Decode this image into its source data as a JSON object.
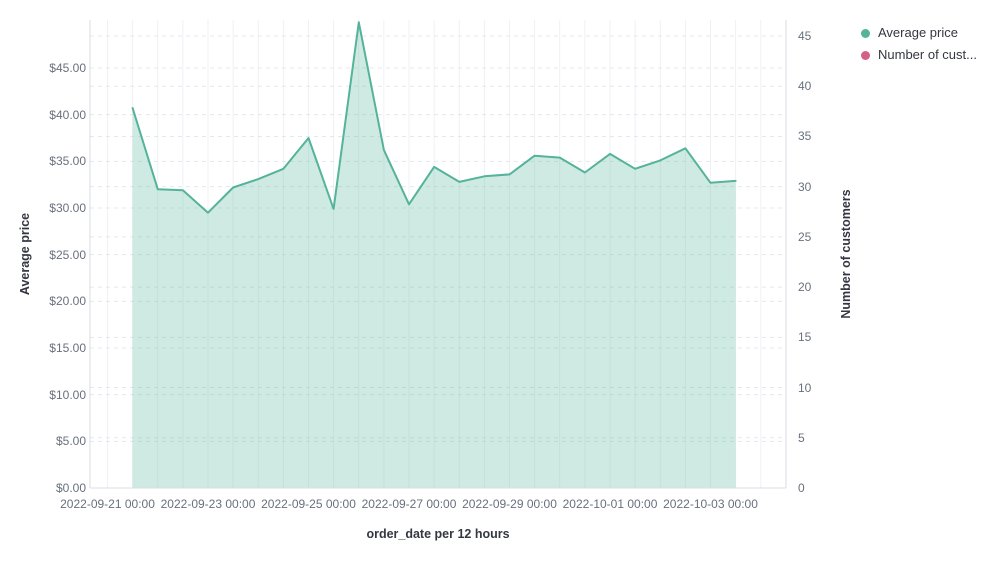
{
  "chart_data": {
    "type": "area",
    "title": "",
    "legend_position": "top-right",
    "grid": true,
    "x_axis": {
      "label": "order_date per 12 hours",
      "tick_labels": [
        "2022-09-21 00:00",
        "2022-09-23 00:00",
        "2022-09-25 00:00",
        "2022-09-27 00:00",
        "2022-09-29 00:00",
        "2022-10-01 00:00",
        "2022-10-03 00:00"
      ]
    },
    "y_axis_left": {
      "label": "Average price",
      "tick_labels": [
        "$0.00",
        "$5.00",
        "$10.00",
        "$15.00",
        "$20.00",
        "$25.00",
        "$30.00",
        "$35.00",
        "$40.00",
        "$45.00"
      ],
      "tick_values": [
        0,
        5,
        10,
        15,
        20,
        25,
        30,
        35,
        40,
        45
      ],
      "range": [
        0,
        50
      ]
    },
    "y_axis_right": {
      "label": "Number of customers",
      "tick_labels": [
        "0",
        "5",
        "10",
        "15",
        "20",
        "25",
        "30",
        "35",
        "40",
        "45"
      ],
      "tick_values": [
        0,
        5,
        10,
        15,
        20,
        25,
        30,
        35,
        40,
        45
      ],
      "range": [
        0,
        46.5
      ]
    },
    "series": [
      {
        "name": "Average price",
        "axis": "left",
        "color": "#54B399",
        "fill_opacity": 0.28,
        "x": [
          "2022-09-21 12:00",
          "2022-09-22 00:00",
          "2022-09-22 12:00",
          "2022-09-23 00:00",
          "2022-09-23 12:00",
          "2022-09-24 00:00",
          "2022-09-24 12:00",
          "2022-09-25 00:00",
          "2022-09-25 12:00",
          "2022-09-26 00:00",
          "2022-09-26 12:00",
          "2022-09-27 00:00",
          "2022-09-27 12:00",
          "2022-09-28 00:00",
          "2022-09-28 12:00",
          "2022-09-29 00:00",
          "2022-09-29 12:00",
          "2022-09-30 00:00",
          "2022-09-30 12:00",
          "2022-10-01 00:00",
          "2022-10-01 12:00",
          "2022-10-02 00:00",
          "2022-10-02 12:00",
          "2022-10-03 00:00",
          "2022-10-03 12:00"
        ],
        "values": [
          40.7,
          32.0,
          31.9,
          29.5,
          32.2,
          33.1,
          34.2,
          37.5,
          29.9,
          49.9,
          36.2,
          30.4,
          34.4,
          32.8,
          33.4,
          33.6,
          35.6,
          35.4,
          33.8,
          35.8,
          34.2,
          35.1,
          36.4,
          32.7,
          32.9
        ]
      },
      {
        "name": "Number of cust...",
        "axis": "right",
        "color": "#D36086",
        "x": [],
        "values": []
      }
    ],
    "legend": [
      {
        "label": "Average price",
        "color": "#54B399"
      },
      {
        "label": "Number of cust...",
        "color": "#D36086"
      }
    ]
  },
  "colors": {
    "background": "#FFFFFF",
    "line": "#54B399",
    "fill": "rgba(84,179,153,0.28)",
    "secondary": "#D36086",
    "tick_text": "#69707D",
    "title_text": "#343741",
    "grid_h": "#E4E8EE",
    "grid_v": "#EFF1F5",
    "axis_line": "#D8DDE6"
  }
}
